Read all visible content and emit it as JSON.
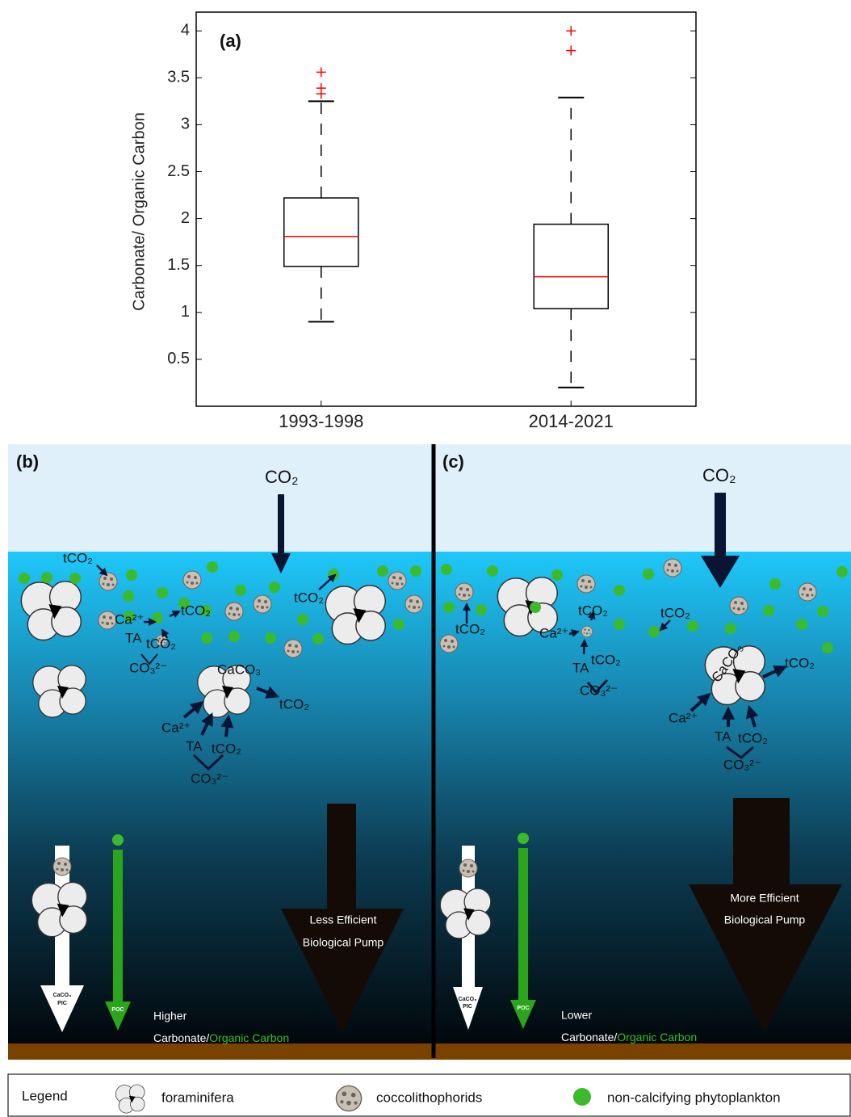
{
  "chart_data": {
    "type": "box",
    "annotation": "(a)",
    "ylabel": "Carbonate/ Organic Carbon",
    "categories": [
      "1993-1998",
      "2014-2021"
    ],
    "whisker_low": [
      0.9,
      0.2
    ],
    "q1": [
      1.49,
      1.04
    ],
    "median": [
      1.81,
      1.38
    ],
    "q3": [
      2.22,
      1.94
    ],
    "whisker_high": [
      3.25,
      3.29
    ],
    "outliers": [
      [
        3.33,
        3.39,
        3.56
      ],
      [
        3.79,
        4.0
      ]
    ],
    "box_color": "#000000",
    "median_color": "#ff0000",
    "outlier_color": "#ff0000",
    "ylim": [
      0,
      4.2
    ],
    "yticks": [
      0.5,
      1,
      1.5,
      2,
      2.5,
      3,
      3.5,
      4
    ],
    "grid": false
  },
  "panels": [
    {
      "texts": [
        "(b)",
        "CO₂",
        "tCO₂",
        "tCO₂",
        "Ca²⁺",
        "tCO₂",
        "TA",
        "tCO₂",
        "CO₃²⁻",
        "CaCO₃",
        "tCO₂",
        "Ca²⁺",
        "TA",
        "tCO₂",
        "CO₃²⁻",
        "Less Efficient",
        "Biological Pump",
        "CaCO₃",
        "PIC",
        "POC",
        "Higher",
        "Carbonate/",
        "Organic Carbon"
      ]
    },
    {
      "texts": [
        "(c)",
        "CO₂",
        "tCO₂",
        "tCO₂",
        "tCO₂",
        "Ca²⁺",
        "TA",
        "tCO₂",
        "CO₃²⁻",
        "CaCO₃",
        "tCO₂",
        "Ca²⁺",
        "TA",
        "tCO₂",
        "CO₃²⁻",
        "More Efficient",
        "Biological Pump",
        "CaCO₃",
        "PIC",
        "POC",
        "Lower",
        "Carbonate/",
        "Organic Carbon"
      ]
    }
  ],
  "legend": {
    "title": "Legend",
    "items": [
      "foraminifera",
      "coccolithophorids",
      "non-calcifying phytoplankton"
    ]
  }
}
